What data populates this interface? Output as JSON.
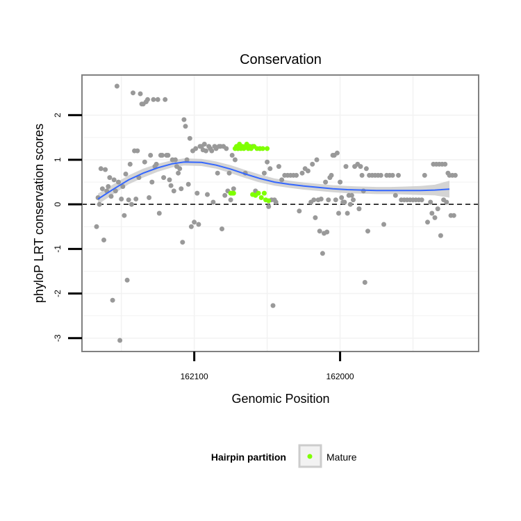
{
  "chart_data": {
    "type": "scatter",
    "title": "Conservation",
    "xlabel": "Genomic Position",
    "ylabel": "phyloP LRT conservation scores",
    "x_reversed": true,
    "xlim": [
      162177,
      161905
    ],
    "ylim": [
      -3.3,
      2.9
    ],
    "x_ticks": [
      162100,
      162000
    ],
    "y_ticks": [
      -3,
      -2,
      -1,
      0,
      1,
      2
    ],
    "reference_line": {
      "y": 0,
      "style": "dashed"
    },
    "grid": true,
    "legend": {
      "title": "Hairpin partition",
      "placement": "bottom",
      "entries": [
        {
          "label": "Mature",
          "color": "#7fff00"
        }
      ]
    },
    "colors": {
      "points": "#999999",
      "mature": "#7fff00",
      "smooth": "#3366ff",
      "ribbon": "#cccccc",
      "panel_border": "#808080",
      "grid": "#f2f2f2"
    },
    "smooth": {
      "x": [
        162166,
        162155,
        162145,
        162135,
        162125,
        162115,
        162107,
        162095,
        162085,
        162075,
        162065,
        162055,
        162045,
        162035,
        162025,
        162015,
        162005,
        161995,
        161985,
        161975,
        161965,
        161955,
        161945,
        161935,
        161925
      ],
      "y": [
        0.12,
        0.35,
        0.55,
        0.7,
        0.82,
        0.91,
        0.95,
        0.94,
        0.88,
        0.79,
        0.68,
        0.58,
        0.5,
        0.45,
        0.41,
        0.38,
        0.35,
        0.33,
        0.32,
        0.31,
        0.31,
        0.31,
        0.31,
        0.32,
        0.34
      ],
      "lower": [
        0.0,
        0.24,
        0.45,
        0.6,
        0.73,
        0.83,
        0.87,
        0.86,
        0.8,
        0.7,
        0.59,
        0.49,
        0.42,
        0.37,
        0.33,
        0.3,
        0.27,
        0.25,
        0.24,
        0.23,
        0.23,
        0.22,
        0.21,
        0.2,
        0.15
      ],
      "upper": [
        0.24,
        0.46,
        0.65,
        0.8,
        0.91,
        0.99,
        1.03,
        1.02,
        0.96,
        0.88,
        0.77,
        0.67,
        0.58,
        0.53,
        0.49,
        0.46,
        0.43,
        0.41,
        0.4,
        0.39,
        0.39,
        0.4,
        0.41,
        0.44,
        0.53
      ]
    },
    "series": [
      {
        "name": "",
        "color": "#999999",
        "points": [
          [
            162167,
            -0.5
          ],
          [
            162166,
            0.15
          ],
          [
            162165,
            0.0
          ],
          [
            162164,
            0.8
          ],
          [
            162163,
            0.35
          ],
          [
            162162,
            -0.8
          ],
          [
            162161,
            0.78
          ],
          [
            162160,
            0.3
          ],
          [
            162159,
            0.4
          ],
          [
            162158,
            0.6
          ],
          [
            162157,
            0.18
          ],
          [
            162156,
            -2.15
          ],
          [
            162155,
            0.55
          ],
          [
            162154,
            0.3
          ],
          [
            162153,
            2.65
          ],
          [
            162152,
            0.5
          ],
          [
            162151,
            -3.05
          ],
          [
            162150,
            0.12
          ],
          [
            162149,
            0.4
          ],
          [
            162148,
            -0.25
          ],
          [
            162147,
            0.68
          ],
          [
            162146,
            -1.7
          ],
          [
            162145,
            0.1
          ],
          [
            162144,
            0.9
          ],
          [
            162143,
            0.0
          ],
          [
            162142,
            2.5
          ],
          [
            162141,
            1.2
          ],
          [
            162140,
            0.12
          ],
          [
            162139,
            1.2
          ],
          [
            162138,
            0.6
          ],
          [
            162137,
            2.48
          ],
          [
            162136,
            2.25
          ],
          [
            162135,
            2.25
          ],
          [
            162134,
            0.95
          ],
          [
            162133,
            2.3
          ],
          [
            162132,
            2.35
          ],
          [
            162131,
            0.15
          ],
          [
            162130,
            1.1
          ],
          [
            162129,
            0.5
          ],
          [
            162128,
            2.35
          ],
          [
            162127,
            0.85
          ],
          [
            162126,
            0.9
          ],
          [
            162125,
            2.35
          ],
          [
            162124,
            -0.2
          ],
          [
            162123,
            1.1
          ],
          [
            162122,
            1.1
          ],
          [
            162121,
            0.6
          ],
          [
            162120,
            2.35
          ],
          [
            162119,
            1.1
          ],
          [
            162118,
            1.1
          ],
          [
            162117,
            0.55
          ],
          [
            162116,
            0.42
          ],
          [
            162115,
            1.0
          ],
          [
            162114,
            0.3
          ],
          [
            162113,
            1.0
          ],
          [
            162112,
            0.85
          ],
          [
            162111,
            0.7
          ],
          [
            162110,
            0.8
          ],
          [
            162109,
            0.35
          ],
          [
            162108,
            -0.85
          ],
          [
            162107,
            1.9
          ],
          [
            162106,
            1.75
          ],
          [
            162105,
            1.0
          ],
          [
            162104,
            0.45
          ],
          [
            162103,
            1.48
          ],
          [
            162102,
            -0.5
          ],
          [
            162101,
            1.2
          ],
          [
            162100,
            -0.4
          ],
          [
            162099,
            1.25
          ],
          [
            162098,
            0.25
          ],
          [
            162097,
            -0.45
          ],
          [
            162096,
            1.3
          ],
          [
            162095,
            1.3
          ],
          [
            162094,
            1.22
          ],
          [
            162093,
            1.35
          ],
          [
            162092,
            1.2
          ],
          [
            162091,
            0.22
          ],
          [
            162090,
            1.3
          ],
          [
            162089,
            1.25
          ],
          [
            162088,
            1.2
          ],
          [
            162087,
            0.05
          ],
          [
            162086,
            1.3
          ],
          [
            162085,
            1.25
          ],
          [
            162084,
            0.7
          ],
          [
            162083,
            1.3
          ],
          [
            162082,
            1.3
          ],
          [
            162081,
            -0.55
          ],
          [
            162080,
            1.3
          ],
          [
            162079,
            0.2
          ],
          [
            162078,
            1.25
          ],
          [
            162077,
            0.3
          ],
          [
            162076,
            0.7
          ],
          [
            162075,
            0.1
          ],
          [
            162074,
            1.1
          ],
          [
            162073,
            0.35
          ],
          [
            162072,
            1.0
          ],
          [
            162070,
            1.25
          ],
          [
            162065,
            0.7
          ],
          [
            162060,
            1.3
          ],
          [
            162058,
            0.3
          ],
          [
            162055,
            1.25
          ],
          [
            162052,
            0.7
          ],
          [
            162050,
            0.95
          ],
          [
            162049,
            -0.05
          ],
          [
            162048,
            0.8
          ],
          [
            162047,
            0.1
          ],
          [
            162046,
            -2.27
          ],
          [
            162045,
            0.1
          ],
          [
            162044,
            0.05
          ],
          [
            162042,
            0.85
          ],
          [
            162040,
            0.55
          ],
          [
            162038,
            0.65
          ],
          [
            162036,
            0.65
          ],
          [
            162034,
            0.65
          ],
          [
            162032,
            0.65
          ],
          [
            162030,
            0.65
          ],
          [
            162028,
            -0.15
          ],
          [
            162026,
            0.7
          ],
          [
            162024,
            0.8
          ],
          [
            162022,
            0.75
          ],
          [
            162020,
            0.05
          ],
          [
            162019,
            0.9
          ],
          [
            162018,
            0.1
          ],
          [
            162017,
            -0.3
          ],
          [
            162016,
            1.0
          ],
          [
            162015,
            0.1
          ],
          [
            162014,
            -0.6
          ],
          [
            162013,
            0.12
          ],
          [
            162012,
            -1.1
          ],
          [
            162011,
            -0.65
          ],
          [
            162010,
            0.5
          ],
          [
            162009,
            -0.62
          ],
          [
            162008,
            0.1
          ],
          [
            162007,
            0.6
          ],
          [
            162006,
            0.65
          ],
          [
            162005,
            1.1
          ],
          [
            162004,
            1.1
          ],
          [
            162003,
            0.1
          ],
          [
            162002,
            1.15
          ],
          [
            162001,
            -0.2
          ],
          [
            162000,
            0.5
          ],
          [
            161999,
            0.15
          ],
          [
            161998,
            0.05
          ],
          [
            161997,
            0.05
          ],
          [
            161996,
            0.85
          ],
          [
            161995,
            -0.2
          ],
          [
            161994,
            0.2
          ],
          [
            161993,
            0.0
          ],
          [
            161992,
            0.2
          ],
          [
            161991,
            0.1
          ],
          [
            161990,
            0.85
          ],
          [
            161988,
            0.9
          ],
          [
            161987,
            -0.1
          ],
          [
            161986,
            0.85
          ],
          [
            161985,
            0.65
          ],
          [
            161984,
            0.3
          ],
          [
            161983,
            -1.75
          ],
          [
            161982,
            0.8
          ],
          [
            161981,
            -0.6
          ],
          [
            161980,
            0.65
          ],
          [
            161978,
            0.65
          ],
          [
            161976,
            0.65
          ],
          [
            161974,
            0.65
          ],
          [
            161972,
            0.65
          ],
          [
            161970,
            -0.45
          ],
          [
            161968,
            0.65
          ],
          [
            161966,
            0.65
          ],
          [
            161964,
            0.65
          ],
          [
            161962,
            0.2
          ],
          [
            161960,
            0.65
          ],
          [
            161958,
            0.1
          ],
          [
            161956,
            0.1
          ],
          [
            161954,
            0.1
          ],
          [
            161952,
            0.1
          ],
          [
            161950,
            0.1
          ],
          [
            161948,
            0.1
          ],
          [
            161946,
            0.1
          ],
          [
            161944,
            0.1
          ],
          [
            161942,
            0.65
          ],
          [
            161940,
            -0.4
          ],
          [
            161938,
            0.05
          ],
          [
            161937,
            -0.2
          ],
          [
            161936,
            0.9
          ],
          [
            161935,
            -0.3
          ],
          [
            161934,
            0.9
          ],
          [
            161933,
            -0.1
          ],
          [
            161932,
            0.9
          ],
          [
            161931,
            -0.7
          ],
          [
            161930,
            0.9
          ],
          [
            161929,
            0.1
          ],
          [
            161928,
            0.9
          ],
          [
            161927,
            0.05
          ],
          [
            161926,
            0.7
          ],
          [
            161925,
            0.65
          ],
          [
            161924,
            -0.25
          ],
          [
            161923,
            0.65
          ],
          [
            161922,
            -0.25
          ],
          [
            161921,
            0.65
          ]
        ]
      },
      {
        "name": "Mature",
        "color": "#7fff00",
        "points": [
          [
            162075,
            0.25
          ],
          [
            162074,
            0.25
          ],
          [
            162073,
            0.25
          ],
          [
            162072,
            1.25
          ],
          [
            162071,
            1.3
          ],
          [
            162070,
            1.25
          ],
          [
            162069,
            1.35
          ],
          [
            162068,
            1.25
          ],
          [
            162067,
            1.3
          ],
          [
            162066,
            1.25
          ],
          [
            162065,
            1.3
          ],
          [
            162064,
            1.35
          ],
          [
            162063,
            1.25
          ],
          [
            162062,
            1.3
          ],
          [
            162061,
            1.25
          ],
          [
            162060,
            0.22
          ],
          [
            162059,
            1.3
          ],
          [
            162058,
            0.2
          ],
          [
            162057,
            1.25
          ],
          [
            162056,
            0.25
          ],
          [
            162055,
            1.25
          ],
          [
            162054,
            0.15
          ],
          [
            162053,
            1.25
          ],
          [
            162052,
            0.25
          ],
          [
            162051,
            0.1
          ],
          [
            162050,
            1.25
          ],
          [
            162049,
            0.08
          ]
        ]
      }
    ]
  }
}
